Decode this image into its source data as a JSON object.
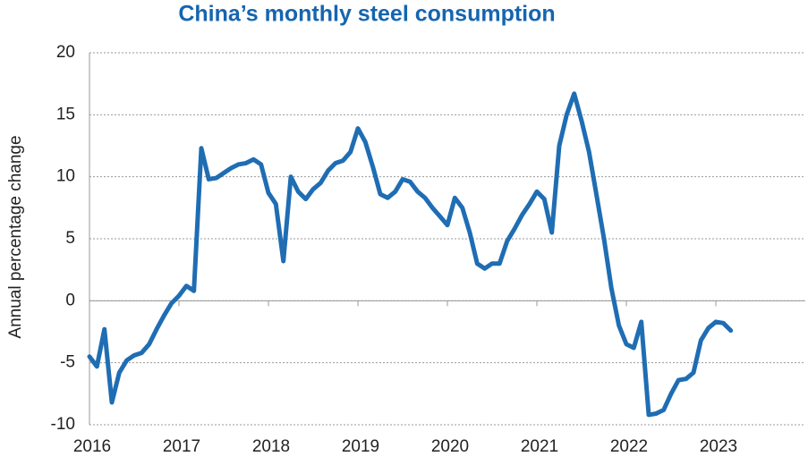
{
  "chart_data": {
    "type": "line",
    "title": "China’s monthly steel consumption",
    "y_label": "Annual percentage change",
    "x": [
      2016,
      2016.083,
      2016.167,
      2016.25,
      2016.333,
      2016.417,
      2016.5,
      2016.583,
      2016.667,
      2016.75,
      2016.833,
      2016.917,
      2017,
      2017.083,
      2017.167,
      2017.25,
      2017.333,
      2017.417,
      2017.5,
      2017.583,
      2017.667,
      2017.75,
      2017.833,
      2017.917,
      2018,
      2018.083,
      2018.167,
      2018.25,
      2018.333,
      2018.417,
      2018.5,
      2018.583,
      2018.667,
      2018.75,
      2018.833,
      2018.917,
      2019,
      2019.083,
      2019.167,
      2019.25,
      2019.333,
      2019.417,
      2019.5,
      2019.583,
      2019.667,
      2019.75,
      2019.833,
      2019.917,
      2020,
      2020.083,
      2020.167,
      2020.25,
      2020.333,
      2020.417,
      2020.5,
      2020.583,
      2020.667,
      2020.75,
      2020.833,
      2020.917,
      2021,
      2021.083,
      2021.167,
      2021.25,
      2021.333,
      2021.417,
      2021.5,
      2021.583,
      2021.667,
      2021.75,
      2021.833,
      2021.917,
      2022,
      2022.083,
      2022.167,
      2022.25,
      2022.333,
      2022.417,
      2022.5,
      2022.583,
      2022.667,
      2022.75,
      2022.833,
      2022.917,
      2023,
      2023.083,
      2023.167
    ],
    "series": [
      {
        "name": "Steel consumption",
        "color": "#1f6db3",
        "values": [
          -4.5,
          -5.3,
          -2.3,
          -8.2,
          -5.8,
          -4.8,
          -4.4,
          -4.2,
          -3.5,
          -2.3,
          -1.2,
          -0.2,
          0.4,
          1.2,
          0.8,
          12.3,
          9.8,
          9.9,
          10.3,
          10.7,
          11.0,
          11.1,
          11.4,
          11.0,
          8.7,
          7.8,
          3.2,
          10.0,
          8.8,
          8.2,
          9.0,
          9.5,
          10.5,
          11.1,
          11.3,
          12.0,
          13.9,
          12.8,
          10.8,
          8.6,
          8.3,
          8.8,
          9.8,
          9.6,
          8.8,
          8.3,
          7.5,
          6.8,
          6.1,
          8.3,
          7.5,
          5.5,
          3.0,
          2.6,
          3.0,
          3.0,
          4.8,
          5.8,
          6.9,
          7.8,
          8.8,
          8.2,
          5.5,
          12.5,
          15.0,
          16.7,
          14.5,
          12.0,
          8.5,
          5.0,
          1.0,
          -2.0,
          -3.5,
          -3.8,
          -1.7,
          -9.2,
          -9.1,
          -8.8,
          -7.5,
          -6.4,
          -6.3,
          -5.8,
          -3.2,
          -2.2,
          -1.7,
          -1.8,
          -2.4
        ]
      }
    ],
    "xlim": [
      2016,
      2024
    ],
    "xticks": [
      2016,
      2017,
      2018,
      2019,
      2020,
      2021,
      2022,
      2023
    ],
    "ylim": [
      -10,
      20
    ],
    "yticks": [
      -10,
      -5,
      0,
      5,
      10,
      15,
      20
    ],
    "grid": true
  }
}
